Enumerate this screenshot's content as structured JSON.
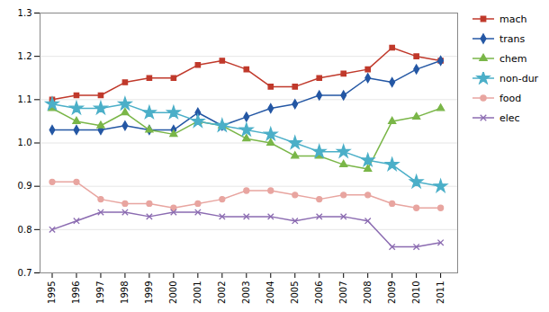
{
  "chart_data": {
    "type": "line",
    "x": [
      1995,
      1996,
      1997,
      1998,
      1999,
      2000,
      2001,
      2002,
      2003,
      2004,
      2005,
      2006,
      2007,
      2008,
      2009,
      2010,
      2011
    ],
    "series": [
      {
        "name": "mach",
        "color": "#C0392B",
        "marker": "square",
        "values": [
          1.1,
          1.11,
          1.11,
          1.14,
          1.15,
          1.15,
          1.18,
          1.19,
          1.17,
          1.13,
          1.13,
          1.15,
          1.16,
          1.17,
          1.22,
          1.2,
          1.19
        ]
      },
      {
        "name": "trans",
        "color": "#2457A4",
        "marker": "diamond",
        "values": [
          1.03,
          1.03,
          1.03,
          1.04,
          1.03,
          1.03,
          1.07,
          1.04,
          1.06,
          1.08,
          1.09,
          1.11,
          1.11,
          1.15,
          1.14,
          1.17,
          1.19
        ]
      },
      {
        "name": "chem",
        "color": "#7AB648",
        "marker": "triangle",
        "values": [
          1.08,
          1.05,
          1.04,
          1.07,
          1.03,
          1.02,
          1.05,
          1.04,
          1.01,
          1.0,
          0.97,
          0.97,
          0.95,
          0.94,
          1.05,
          1.06,
          1.08
        ]
      },
      {
        "name": "non-dur",
        "color": "#4BAFC8",
        "marker": "star",
        "values": [
          1.09,
          1.08,
          1.08,
          1.09,
          1.07,
          1.07,
          1.05,
          1.04,
          1.03,
          1.02,
          1.0,
          0.98,
          0.98,
          0.96,
          0.95,
          0.91,
          0.9
        ]
      },
      {
        "name": "food",
        "color": "#E8A5A0",
        "marker": "circle",
        "values": [
          0.91,
          0.91,
          0.87,
          0.86,
          0.86,
          0.85,
          0.86,
          0.87,
          0.89,
          0.89,
          0.88,
          0.87,
          0.88,
          0.88,
          0.86,
          0.85,
          0.85
        ]
      },
      {
        "name": "elec",
        "color": "#8B6BB1",
        "marker": "x",
        "values": [
          0.8,
          0.82,
          0.84,
          0.84,
          0.83,
          0.84,
          0.84,
          0.83,
          0.83,
          0.83,
          0.82,
          0.83,
          0.83,
          0.82,
          0.76,
          0.76,
          0.77
        ]
      }
    ],
    "xlim": [
      1994.5,
      2011.7
    ],
    "xticks": [
      1995,
      1996,
      1997,
      1998,
      1999,
      2000,
      2001,
      2002,
      2003,
      2004,
      2005,
      2006,
      2007,
      2008,
      2009,
      2010,
      2011
    ],
    "ylim": [
      0.7,
      1.3
    ],
    "yticks": [
      0.7,
      0.8,
      0.9,
      {
        "value": 1.0,
        "label": "1.0"
      },
      1.1,
      1.2,
      1.3
    ],
    "grid": "y",
    "legend": "right"
  }
}
